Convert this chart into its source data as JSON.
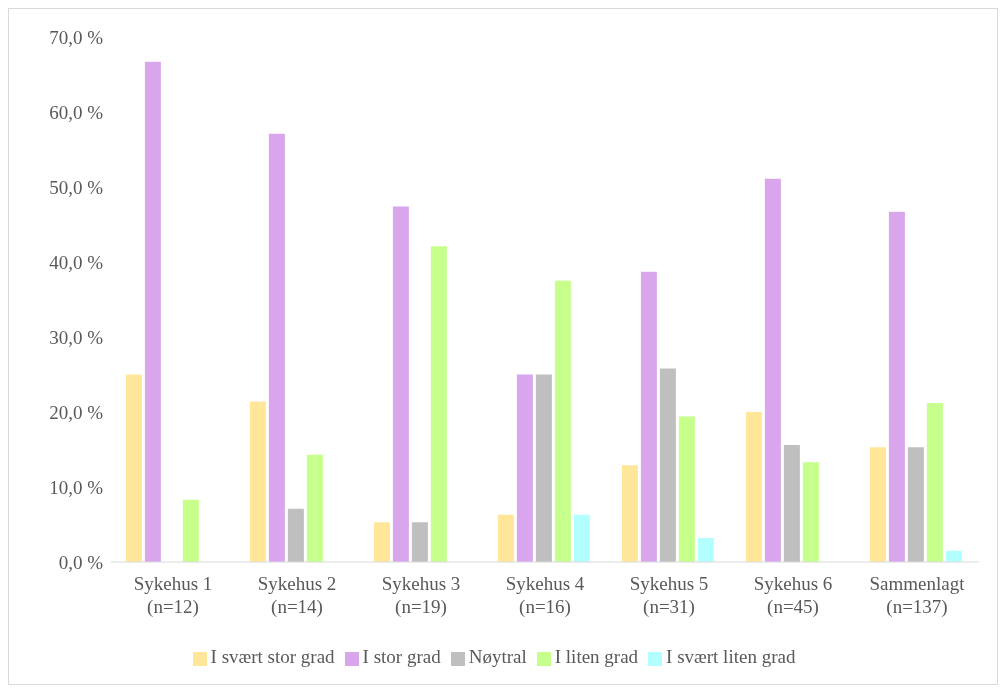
{
  "chart_data": {
    "type": "bar",
    "categories": [
      "Sykehus 1\n(n=12)",
      "Sykehus 2\n(n=14)",
      "Sykehus 3\n(n=19)",
      "Sykehus 4\n(n=16)",
      "Sykehus 5\n(n=31)",
      "Sykehus 6\n(n=45)",
      "Sammenlagt\n(n=137)"
    ],
    "series": [
      {
        "name": "I svært stor grad",
        "color": "#ffe699",
        "values": [
          25.0,
          21.4,
          5.3,
          6.3,
          12.9,
          20.0,
          15.3
        ]
      },
      {
        "name": "I stor grad",
        "color": "#d9a6ee",
        "values": [
          66.7,
          57.1,
          47.4,
          25.0,
          38.7,
          51.1,
          46.7
        ]
      },
      {
        "name": "Nøytral",
        "color": "#bfbfbf",
        "values": [
          0,
          7.1,
          5.3,
          25.0,
          25.8,
          15.6,
          15.3
        ]
      },
      {
        "name": "I liten grad",
        "color": "#c6ff8c",
        "values": [
          8.3,
          14.3,
          42.1,
          37.5,
          19.4,
          13.3,
          21.2
        ]
      },
      {
        "name": "I svært liten grad",
        "color": "#b3ffff",
        "values": [
          0,
          0,
          0,
          6.3,
          3.2,
          0,
          1.5
        ]
      }
    ],
    "ylim": [
      0,
      70
    ],
    "yticks": [
      {
        "value": 0,
        "label": "0,0 %"
      },
      {
        "value": 10,
        "label": "10,0 %"
      },
      {
        "value": 20,
        "label": "20,0 %"
      },
      {
        "value": 30,
        "label": "30,0 %"
      },
      {
        "value": 40,
        "label": "40,0 %"
      },
      {
        "value": 50,
        "label": "50,0 %"
      },
      {
        "value": 60,
        "label": "60,0 %"
      },
      {
        "value": 70,
        "label": "70,0 %"
      }
    ],
    "grid": false,
    "legend": "bottom"
  }
}
